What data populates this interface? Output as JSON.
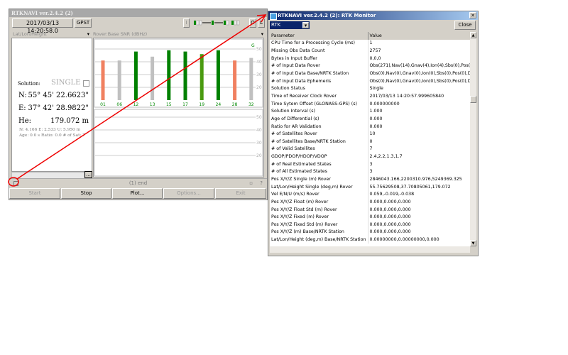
{
  "main_window": {
    "title": "RTKNAVI ver.2.4.2 (2)",
    "time": "2017/03/13 14:20:58.0",
    "time_sys": "GPST",
    "toolbar_i": "I",
    "toolbar_o": "O",
    "toolbar_l": "L",
    "left_select": "Lat/Lon/Height",
    "chart_select": "Rover:Base SNR (dBHz)",
    "solution_label": "Solution:",
    "solution_value": "SINGLE",
    "n_label": "N:",
    "n_value": "55° 45' 22.6623\"",
    "e_label": "E:",
    "e_value": "37° 42' 28.9822\"",
    "he_label": "He:",
    "he_value": "179.072 m",
    "stats1": "N: 4.166 E: 2.533 U: 5.950 m",
    "stats2": "Age: 0.0 s Ratio: 0.0 # of Sat: 7",
    "status": "(1) end",
    "help": "?",
    "more": "...",
    "buttons": {
      "start": "Start",
      "stop": "Stop",
      "plot": "Plot...",
      "options": "Options...",
      "exit": "Exit"
    }
  },
  "chart_data": {
    "type": "bar",
    "title": "Rover:Base SNR (dBHz)",
    "system_label": "G",
    "categories": [
      "01",
      "06",
      "12",
      "13",
      "15",
      "17",
      "19",
      "24",
      "28",
      "32"
    ],
    "values": [
      41,
      41,
      48,
      44,
      49,
      48,
      46,
      49,
      41,
      43
    ],
    "colors": [
      "#f08060",
      "#c0c0c0",
      "#008000",
      "#c0c0c0",
      "#008000",
      "#008000",
      "#4a9a10",
      "#008000",
      "#f08060",
      "#c0c0c0"
    ],
    "yticks": [
      20,
      30,
      40,
      50
    ],
    "ylim": [
      10,
      55
    ],
    "lower_yticks": [
      20,
      30,
      40,
      50
    ]
  },
  "monitor": {
    "title": "RTKNAVI ver.2.4.2 (2): RTK Monitor",
    "type": "RTK",
    "close": "Close",
    "headers": [
      "Parameter",
      "Value"
    ],
    "rows": [
      [
        "CPU Time for a Processing Cycle (ms)",
        "1"
      ],
      [
        "Missing Obs Data Count",
        "2757"
      ],
      [
        "Bytes in Input Buffer",
        "0,0,0"
      ],
      [
        "# of Input Data Rover",
        "Obs(271),Nav(14),Gnav(4),Ion(4),Sbs(0),Pos(0),D"
      ],
      [
        "# of Input Data Base/NRTK Station",
        "Obs(0),Nav(0),Gnav(0),Ion(0),Sbs(0),Pos(0),D"
      ],
      [
        "# of Input Data Ephemeris",
        "Obs(0),Nav(0),Gnav(0),Ion(0),Sbs(0),Pos(0),D"
      ],
      [
        "Solution Status",
        "Single"
      ],
      [
        "Time of Receiver Clock Rover",
        "2017/03/13 14:20:57.999605840"
      ],
      [
        "Time Sytem Offset (GLONASS-GPS) (s)",
        "0.000000000"
      ],
      [
        "Solution Interval (s)",
        "1.000"
      ],
      [
        "Age of Differential (s)",
        "0.000"
      ],
      [
        "Ratio for AR Validation",
        "0.000"
      ],
      [
        "# of Satellites Rover",
        "10"
      ],
      [
        "# of Satellites Base/NRTK Station",
        "0"
      ],
      [
        "# of Valid Satellites",
        "7"
      ],
      [
        "GDOP/PDOP/HDOP/VDOP",
        "2.4,2.2,1.3,1.7"
      ],
      [
        "# of Real Estimated States",
        "3"
      ],
      [
        "# of All Estimated States",
        "3"
      ],
      [
        "Pos X/Y/Z Single (m) Rover",
        "2846043.166,2200310.976,5249369.325"
      ],
      [
        "Lat/Lon/Height Single (deg,m) Rover",
        "55.75629508,37.70805061,179.072"
      ],
      [
        "Vel E/N/U (m/s) Rover",
        "0.059,-0.019,-0.038"
      ],
      [
        "Pos X/Y/Z Float (m) Rover",
        "0.000,0.000,0.000"
      ],
      [
        "Pos X/Y/Z Float Std (m) Rover",
        "0.000,0.000,0.000"
      ],
      [
        "Pos X/Y/Z Fixed (m) Rover",
        "0.000,0.000,0.000"
      ],
      [
        "Pos X/Y/Z Fixed Std (m) Rover",
        "0.000,0.000,0.000"
      ],
      [
        "Pos X/Y/Z (m) Base/NRTK Station",
        "0.000,0.000,0.000"
      ],
      [
        "Lat/Lon/Height (deg,m) Base/NRTK Station",
        "0.00000000,0.00000000,0.000"
      ]
    ]
  }
}
